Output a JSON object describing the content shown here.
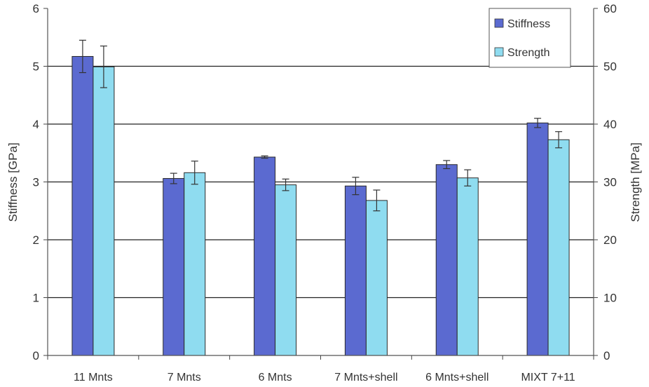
{
  "chart_data": {
    "type": "bar",
    "categories": [
      "11 Mnts",
      "7 Mnts",
      "6 Mnts",
      "7 Mnts+shell",
      "6 Mnts+shell",
      "MIXT 7+11"
    ],
    "series": [
      {
        "name": "Stiffness",
        "axis": "left",
        "values": [
          5.17,
          3.06,
          3.43,
          2.93,
          3.3,
          4.02
        ],
        "error": [
          0.28,
          0.09,
          0.02,
          0.15,
          0.07,
          0.08
        ],
        "color": "#5b6ad0"
      },
      {
        "name": "Strength",
        "axis": "right",
        "values": [
          49.9,
          31.6,
          29.5,
          26.8,
          30.7,
          37.3
        ],
        "error": [
          3.6,
          2.0,
          1.0,
          1.8,
          1.4,
          1.4
        ],
        "color": "#8fdcf0"
      }
    ],
    "ylabel": "Stiffness [GPa]",
    "y2label": "Strength [MPa]",
    "ylim": [
      0,
      6
    ],
    "y2lim": [
      0,
      60
    ],
    "yticks": [
      "0",
      "1",
      "2",
      "3",
      "4",
      "5",
      "6"
    ],
    "y2ticks": [
      "0",
      "10",
      "20",
      "30",
      "40",
      "50",
      "60"
    ],
    "grid": true,
    "legend_position": "top-right"
  }
}
